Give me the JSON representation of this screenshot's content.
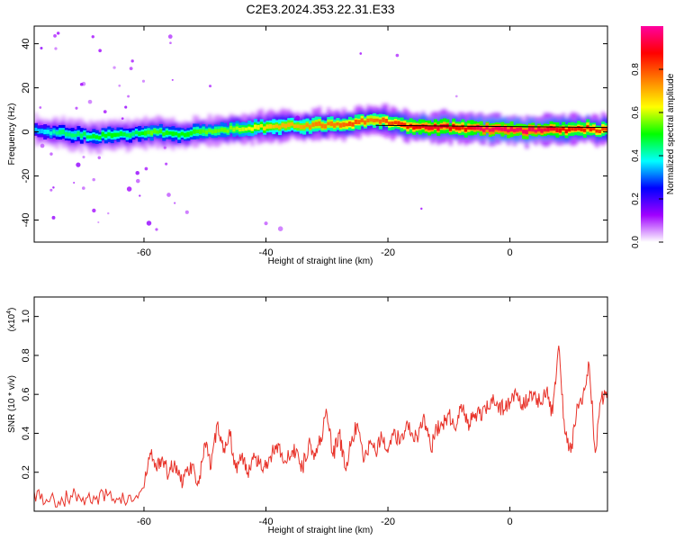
{
  "page_title": "C2E3.2024.353.22.31.E33",
  "chart_data": [
    {
      "type": "heatmap",
      "xlabel": "Height of straight line (km)",
      "ylabel": "Frequency (Hz)",
      "xlim": [
        -78,
        16
      ],
      "ylim": [
        -50,
        48
      ],
      "x_ticks": [
        -60,
        -40,
        -20,
        0
      ],
      "y_ticks": [
        -40,
        -20,
        0,
        20,
        40
      ],
      "colorbar": {
        "label": "Normalized spectral amplitude",
        "range": [
          0,
          1
        ],
        "ticks": [
          0.0,
          0.2,
          0.4,
          0.6,
          0.8
        ],
        "tick_labels": [
          "0.0",
          "0.2",
          "0.4",
          "0.6",
          "0.8"
        ],
        "colors": [
          "#ffffff",
          "#a000ff",
          "#0000ff",
          "#00ffff",
          "#00ff00",
          "#ffff00",
          "#ff8000",
          "#ff0000",
          "#ff00a0"
        ]
      },
      "ridge": {
        "x": [
          -77,
          -74,
          -71,
          -68,
          -65,
          -62,
          -59,
          -56,
          -53,
          -50,
          -47,
          -44,
          -41,
          -38,
          -35,
          -32,
          -29,
          -26,
          -23,
          -20,
          -17,
          -14,
          -11,
          -8,
          -5,
          -2,
          1,
          4,
          7,
          10,
          13,
          16
        ],
        "y": [
          0.5,
          -0.5,
          -1.0,
          -2.0,
          -1.5,
          -1.0,
          0.0,
          -0.5,
          -1.0,
          0.5,
          1.0,
          1.5,
          2.0,
          2.5,
          3.0,
          3.0,
          3.5,
          4.0,
          5.0,
          4.5,
          3.0,
          2.0,
          2.0,
          1.5,
          1.5,
          1.0,
          0.5,
          0.5,
          1.0,
          1.0,
          1.5,
          0.5
        ],
        "amplitude": [
          0.35,
          0.45,
          0.45,
          0.5,
          0.5,
          0.45,
          0.55,
          0.5,
          0.5,
          0.55,
          0.55,
          0.6,
          0.65,
          0.7,
          0.7,
          0.75,
          0.75,
          0.8,
          0.75,
          0.8,
          0.85,
          0.9,
          0.9,
          0.85,
          0.95,
          0.95,
          0.95,
          0.95,
          0.9,
          0.85,
          0.85,
          0.8
        ]
      },
      "guide_line": {
        "x": [
          -22,
          16
        ],
        "y": [
          3,
          2
        ]
      }
    },
    {
      "type": "line",
      "xlabel": "Height of straight line (km)",
      "ylabel": "SNR (10 * v/v)",
      "y_multiplier": "(x10",
      "y_multiplier_exp": "4",
      "y_multiplier_close": ")",
      "xlim": [
        -78,
        16
      ],
      "ylim": [
        0,
        1.1
      ],
      "x_ticks": [
        -60,
        -40,
        -20,
        0
      ],
      "y_ticks": [
        0.2,
        0.4,
        0.6,
        0.8,
        1.0
      ],
      "series": [
        {
          "color": "#e8332a",
          "x": [
            -78,
            -76,
            -74,
            -72,
            -70,
            -68,
            -66,
            -64,
            -62,
            -60,
            -59,
            -58,
            -57,
            -56,
            -55,
            -54,
            -53,
            -52,
            -51,
            -50,
            -49,
            -48,
            -47,
            -46,
            -45,
            -44,
            -43,
            -42,
            -41,
            -40,
            -39,
            -38,
            -37,
            -36,
            -35,
            -34,
            -33,
            -32,
            -31,
            -30,
            -29,
            -28,
            -27,
            -26,
            -25,
            -24,
            -23,
            -22,
            -21,
            -20,
            -19,
            -18,
            -17,
            -16,
            -15,
            -14,
            -13,
            -12,
            -11,
            -10,
            -9,
            -8,
            -7,
            -6,
            -5,
            -4,
            -3,
            -2,
            -1,
            0,
            1,
            2,
            3,
            4,
            5,
            6,
            7,
            8,
            9,
            10,
            11,
            12,
            13,
            14,
            15,
            16
          ],
          "y": [
            0.1,
            0.06,
            0.05,
            0.08,
            0.07,
            0.06,
            0.08,
            0.07,
            0.05,
            0.12,
            0.3,
            0.22,
            0.28,
            0.18,
            0.26,
            0.15,
            0.2,
            0.24,
            0.14,
            0.35,
            0.22,
            0.45,
            0.3,
            0.42,
            0.22,
            0.28,
            0.2,
            0.3,
            0.25,
            0.22,
            0.3,
            0.35,
            0.25,
            0.28,
            0.32,
            0.22,
            0.35,
            0.3,
            0.38,
            0.5,
            0.28,
            0.4,
            0.22,
            0.35,
            0.45,
            0.25,
            0.35,
            0.3,
            0.38,
            0.3,
            0.42,
            0.35,
            0.45,
            0.4,
            0.38,
            0.48,
            0.32,
            0.42,
            0.45,
            0.5,
            0.42,
            0.55,
            0.45,
            0.48,
            0.5,
            0.52,
            0.58,
            0.55,
            0.52,
            0.56,
            0.6,
            0.55,
            0.58,
            0.6,
            0.55,
            0.62,
            0.5,
            0.85,
            0.4,
            0.3,
            0.55,
            0.6,
            0.75,
            0.3,
            0.58,
            0.62
          ]
        }
      ]
    }
  ]
}
